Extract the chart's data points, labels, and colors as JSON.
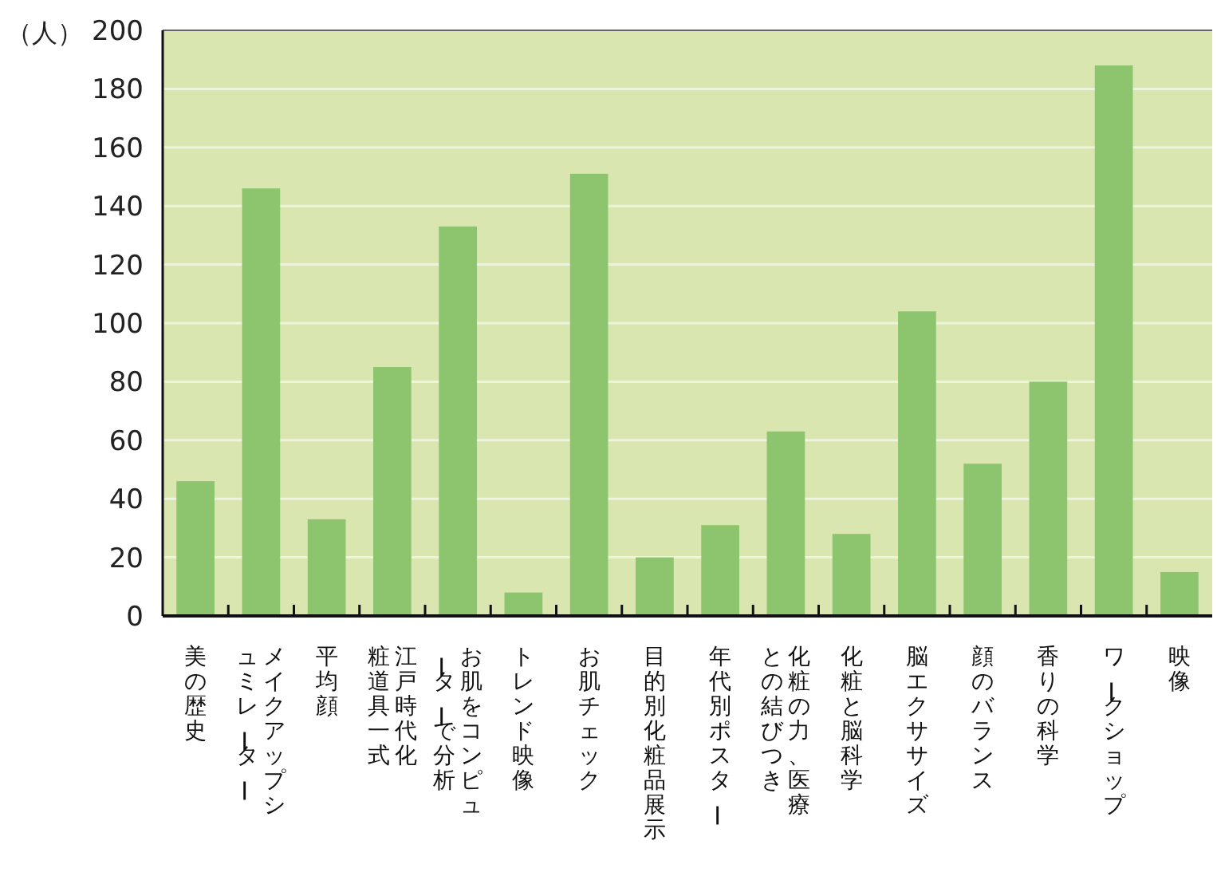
{
  "chart_data": {
    "type": "bar",
    "ylabel": "（人）",
    "categories": [
      "美の歴史",
      "メイクアップシュミレーター",
      "平均顔",
      "江戸時代化粧道具一式",
      "お肌をコンピューターで分析",
      "トレンド映像",
      "お肌チェック",
      "目的別化粧品展示",
      "年代別ポスター",
      "化粧の力、医療との結びつき",
      "化粧と脳科学",
      "脳エクササイズ",
      "顔のバランス",
      "香りの科学",
      "ワークショップ",
      "映像"
    ],
    "values": [
      46,
      146,
      33,
      85,
      133,
      8,
      151,
      20,
      31,
      63,
      28,
      104,
      52,
      80,
      188,
      15
    ],
    "color": "#8cc56e",
    "ylim": [
      0,
      200
    ],
    "yticks": [
      0,
      20,
      40,
      60,
      80,
      100,
      120,
      140,
      160,
      180,
      200
    ],
    "grid": "y"
  }
}
